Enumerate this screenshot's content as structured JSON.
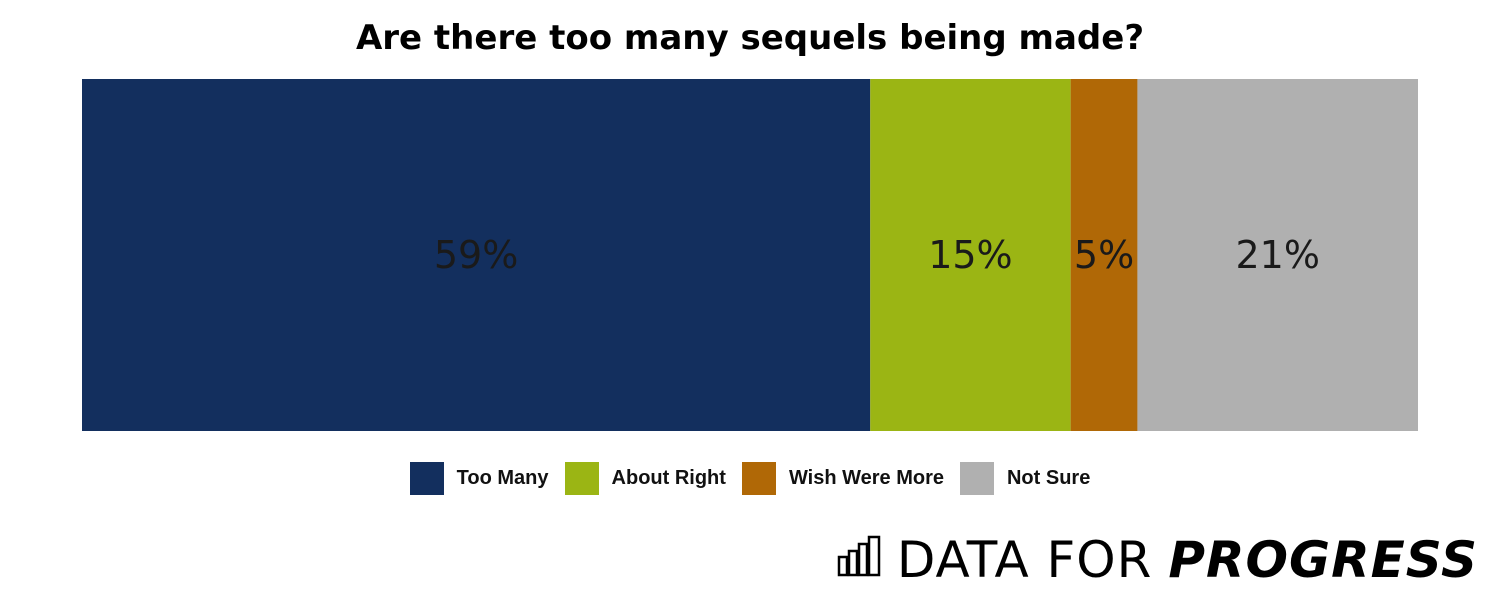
{
  "chart_data": {
    "type": "bar",
    "orientation": "horizontal-stacked",
    "title": "Are there too many sequels being made?",
    "series": [
      {
        "name": "Too Many",
        "value": 59,
        "label": "59%",
        "color": "#132f5e"
      },
      {
        "name": "About Right",
        "value": 15,
        "label": "15%",
        "color": "#9bb514"
      },
      {
        "name": "Wish Were More",
        "value": 5,
        "label": "5%",
        "color": "#b06806"
      },
      {
        "name": "Not Sure",
        "value": 21,
        "label": "21%",
        "color": "#b0b0b0"
      }
    ],
    "xlim": [
      0,
      100
    ],
    "legend_position": "bottom"
  },
  "brand": {
    "light": "DATA FOR",
    "bold": "PROGRESS",
    "icon": "bar-chart-icon"
  }
}
